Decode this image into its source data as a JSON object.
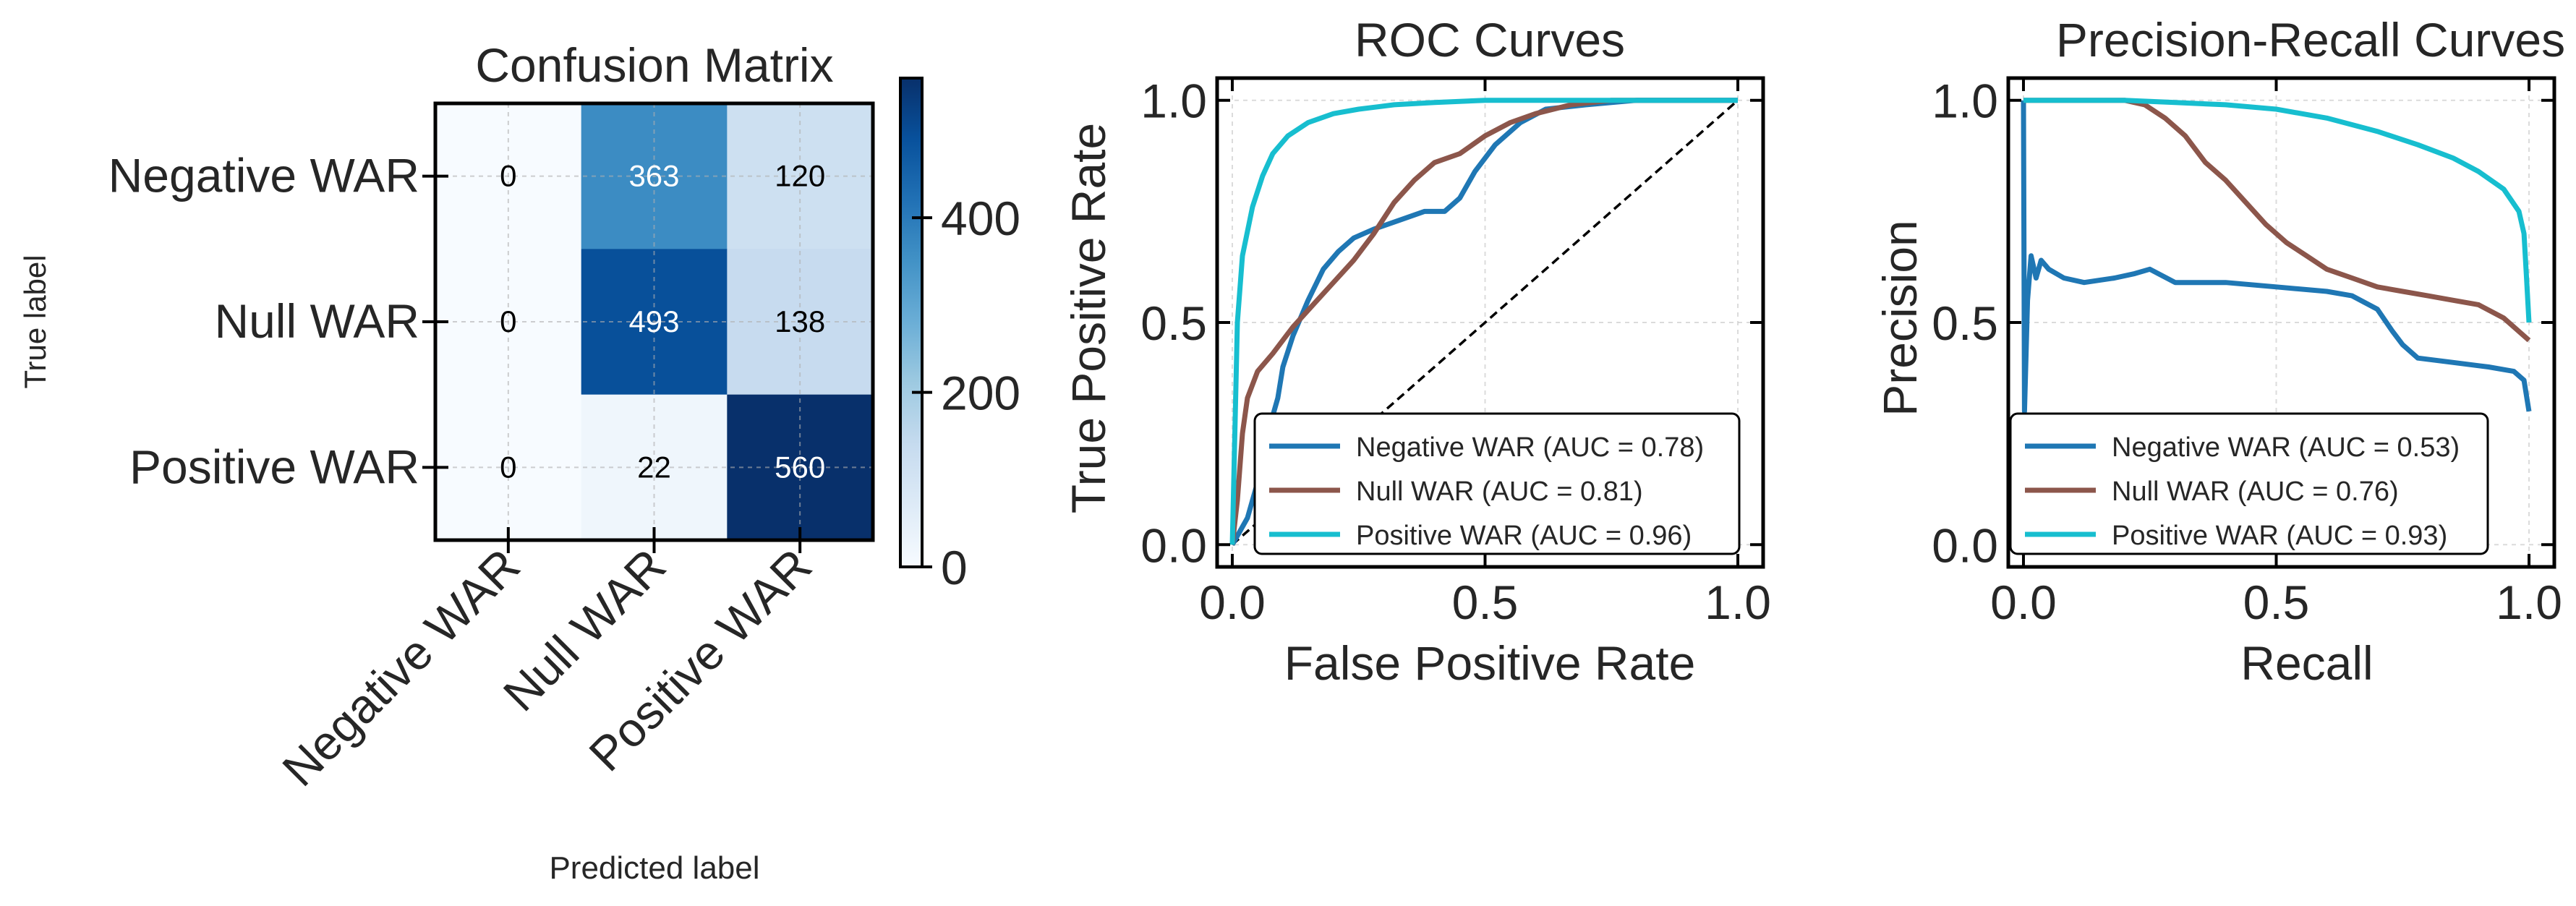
{
  "colors": {
    "negative": "#1f77b4",
    "null": "#8c564b",
    "positive": "#17becf",
    "diagonal": "#000000",
    "cmap": [
      "#f7fbff",
      "#deebf7",
      "#c6dbef",
      "#9ecae1",
      "#6baed6",
      "#4292c6",
      "#2171b5",
      "#08519c",
      "#08306b"
    ]
  },
  "chart_data": [
    {
      "type": "heatmap",
      "title": "Confusion Matrix",
      "xlabel": "Predicted label",
      "ylabel": "True label",
      "row_labels": [
        "Negative WAR",
        "Null WAR",
        "Positive WAR"
      ],
      "col_labels": [
        "Negative WAR",
        "Null WAR",
        "Positive WAR"
      ],
      "matrix": [
        [
          0,
          363,
          120
        ],
        [
          0,
          493,
          138
        ],
        [
          0,
          22,
          560
        ]
      ],
      "colorbar": {
        "vmin": 0,
        "vmax": 560,
        "ticks": [
          0,
          200,
          400
        ]
      },
      "grid": true
    },
    {
      "type": "line",
      "title": "ROC Curves",
      "xlabel": "False Positive Rate",
      "ylabel": "True Positive Rate",
      "xlim": [
        -0.03,
        1.05
      ],
      "ylim": [
        -0.05,
        1.05
      ],
      "xticks": [
        "0.0",
        "0.5",
        "1.0"
      ],
      "yticks": [
        "0.0",
        "0.5",
        "1.0"
      ],
      "grid": true,
      "legend": "lower-right",
      "diagonal": [
        [
          0,
          0
        ],
        [
          1,
          1
        ]
      ],
      "series": [
        {
          "name": "Negative WAR (AUC = 0.78)",
          "points": [
            [
              0,
              0
            ],
            [
              0.01,
              0.02
            ],
            [
              0.03,
              0.06
            ],
            [
              0.05,
              0.14
            ],
            [
              0.07,
              0.25
            ],
            [
              0.09,
              0.33
            ],
            [
              0.1,
              0.4
            ],
            [
              0.12,
              0.47
            ],
            [
              0.15,
              0.55
            ],
            [
              0.18,
              0.62
            ],
            [
              0.21,
              0.66
            ],
            [
              0.24,
              0.69
            ],
            [
              0.28,
              0.71
            ],
            [
              0.33,
              0.73
            ],
            [
              0.38,
              0.75
            ],
            [
              0.42,
              0.75
            ],
            [
              0.45,
              0.78
            ],
            [
              0.48,
              0.84
            ],
            [
              0.52,
              0.9
            ],
            [
              0.57,
              0.95
            ],
            [
              0.62,
              0.98
            ],
            [
              0.7,
              0.99
            ],
            [
              0.8,
              1.0
            ],
            [
              1.0,
              1.0
            ]
          ]
        },
        {
          "name": "Null WAR (AUC = 0.81)",
          "points": [
            [
              0,
              0
            ],
            [
              0.01,
              0.1
            ],
            [
              0.02,
              0.25
            ],
            [
              0.03,
              0.33
            ],
            [
              0.05,
              0.39
            ],
            [
              0.08,
              0.43
            ],
            [
              0.12,
              0.49
            ],
            [
              0.16,
              0.54
            ],
            [
              0.2,
              0.59
            ],
            [
              0.24,
              0.64
            ],
            [
              0.28,
              0.7
            ],
            [
              0.32,
              0.77
            ],
            [
              0.36,
              0.82
            ],
            [
              0.4,
              0.86
            ],
            [
              0.45,
              0.88
            ],
            [
              0.5,
              0.92
            ],
            [
              0.55,
              0.95
            ],
            [
              0.6,
              0.97
            ],
            [
              0.67,
              0.99
            ],
            [
              0.75,
              1.0
            ],
            [
              1.0,
              1.0
            ]
          ]
        },
        {
          "name": "Positive WAR (AUC = 0.96)",
          "points": [
            [
              0,
              0
            ],
            [
              0.005,
              0.25
            ],
            [
              0.01,
              0.5
            ],
            [
              0.02,
              0.65
            ],
            [
              0.04,
              0.76
            ],
            [
              0.06,
              0.83
            ],
            [
              0.08,
              0.88
            ],
            [
              0.11,
              0.92
            ],
            [
              0.15,
              0.95
            ],
            [
              0.2,
              0.97
            ],
            [
              0.25,
              0.98
            ],
            [
              0.32,
              0.99
            ],
            [
              0.4,
              0.995
            ],
            [
              0.5,
              1.0
            ],
            [
              1.0,
              1.0
            ]
          ]
        }
      ]
    },
    {
      "type": "line",
      "title": "Precision-Recall Curves",
      "xlabel": "Recall",
      "ylabel": "Precision",
      "xlim": [
        -0.03,
        1.05
      ],
      "ylim": [
        -0.05,
        1.05
      ],
      "xticks": [
        "0.0",
        "0.5",
        "1.0"
      ],
      "yticks": [
        "0.0",
        "0.5",
        "1.0"
      ],
      "grid": true,
      "legend": "lower-left",
      "series": [
        {
          "name": "Negative WAR (AUC = 0.53)",
          "points": [
            [
              0.0,
              1.0
            ],
            [
              0.002,
              0.3
            ],
            [
              0.008,
              0.55
            ],
            [
              0.015,
              0.65
            ],
            [
              0.025,
              0.6
            ],
            [
              0.035,
              0.64
            ],
            [
              0.05,
              0.62
            ],
            [
              0.08,
              0.6
            ],
            [
              0.12,
              0.59
            ],
            [
              0.18,
              0.6
            ],
            [
              0.22,
              0.61
            ],
            [
              0.25,
              0.62
            ],
            [
              0.3,
              0.59
            ],
            [
              0.4,
              0.59
            ],
            [
              0.5,
              0.58
            ],
            [
              0.6,
              0.57
            ],
            [
              0.65,
              0.56
            ],
            [
              0.7,
              0.53
            ],
            [
              0.73,
              0.48
            ],
            [
              0.75,
              0.45
            ],
            [
              0.78,
              0.42
            ],
            [
              0.85,
              0.41
            ],
            [
              0.92,
              0.4
            ],
            [
              0.97,
              0.39
            ],
            [
              0.99,
              0.37
            ],
            [
              1.0,
              0.3
            ]
          ]
        },
        {
          "name": "Null WAR (AUC = 0.76)",
          "points": [
            [
              0.0,
              1.0
            ],
            [
              0.2,
              1.0
            ],
            [
              0.24,
              0.99
            ],
            [
              0.28,
              0.96
            ],
            [
              0.32,
              0.92
            ],
            [
              0.36,
              0.86
            ],
            [
              0.4,
              0.82
            ],
            [
              0.44,
              0.77
            ],
            [
              0.48,
              0.72
            ],
            [
              0.52,
              0.68
            ],
            [
              0.56,
              0.65
            ],
            [
              0.6,
              0.62
            ],
            [
              0.65,
              0.6
            ],
            [
              0.7,
              0.58
            ],
            [
              0.75,
              0.57
            ],
            [
              0.8,
              0.56
            ],
            [
              0.85,
              0.55
            ],
            [
              0.9,
              0.54
            ],
            [
              0.95,
              0.51
            ],
            [
              1.0,
              0.46
            ]
          ]
        },
        {
          "name": "Positive WAR (AUC = 0.93)",
          "points": [
            [
              0.0,
              1.0
            ],
            [
              0.2,
              1.0
            ],
            [
              0.3,
              0.995
            ],
            [
              0.4,
              0.99
            ],
            [
              0.5,
              0.98
            ],
            [
              0.6,
              0.96
            ],
            [
              0.7,
              0.93
            ],
            [
              0.78,
              0.9
            ],
            [
              0.85,
              0.87
            ],
            [
              0.9,
              0.84
            ],
            [
              0.95,
              0.8
            ],
            [
              0.98,
              0.75
            ],
            [
              0.99,
              0.7
            ],
            [
              0.995,
              0.6
            ],
            [
              1.0,
              0.5
            ]
          ]
        }
      ]
    }
  ]
}
